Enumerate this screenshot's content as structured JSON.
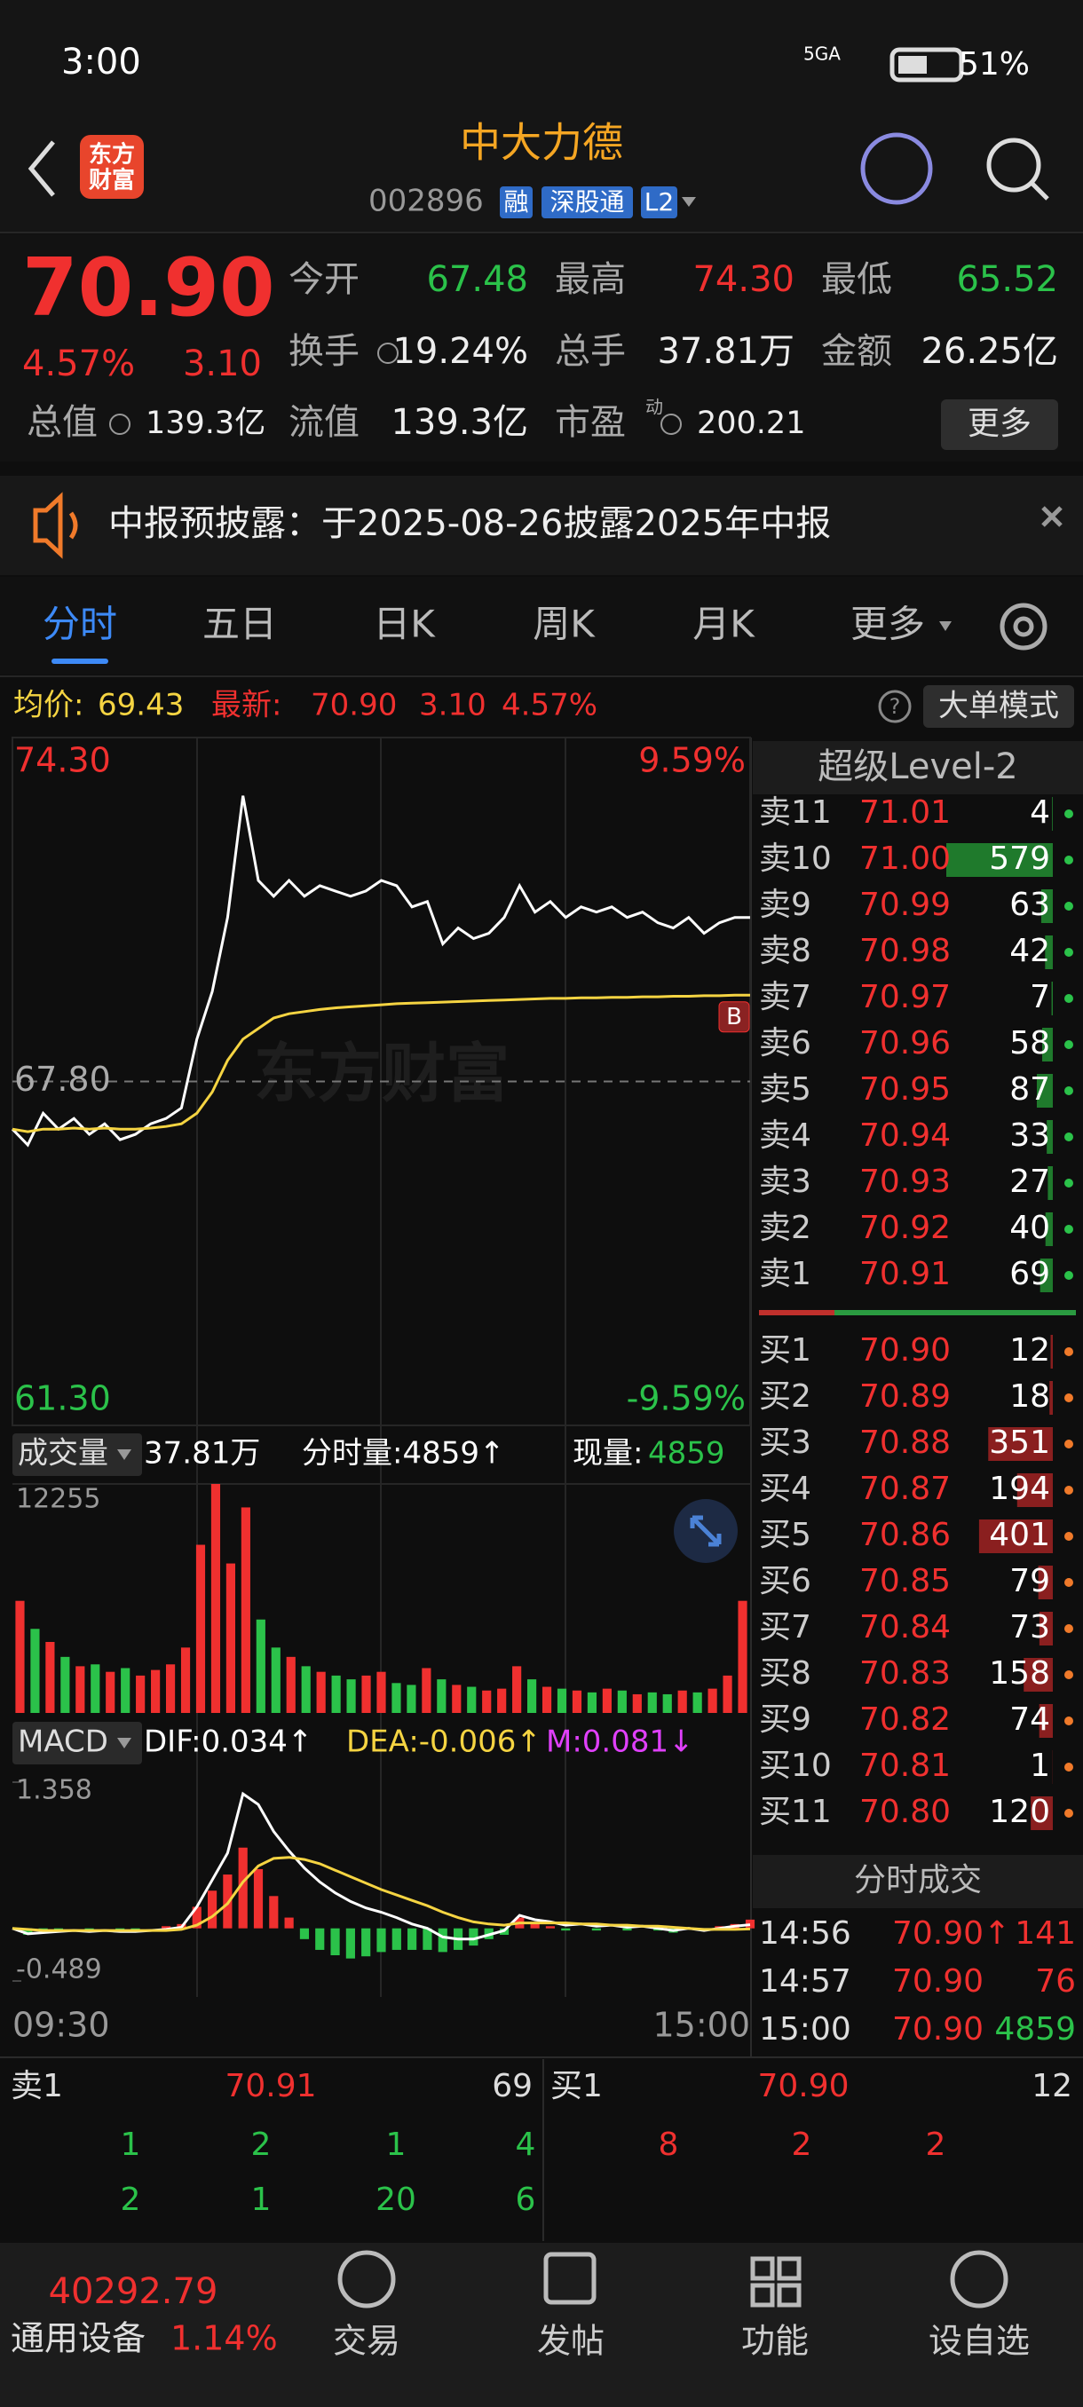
{
  "status_bar": {
    "time": "3:00",
    "network": "5GA",
    "battery": "51%"
  },
  "header": {
    "logo": [
      "东方",
      "财富"
    ],
    "title": "中大力德",
    "code": "002896",
    "badges": [
      "融",
      "深股通",
      "L2"
    ]
  },
  "quote": {
    "price": "70.90",
    "change_pct": "4.57%",
    "change": "3.10",
    "stats": [
      {
        "label": "今开",
        "value": "67.48"
      },
      {
        "label": "最高",
        "value": "74.30"
      },
      {
        "label": "最低",
        "value": "65.52"
      },
      {
        "label": "换手",
        "value": "19.24%"
      },
      {
        "label": "总手",
        "value": "37.81万"
      },
      {
        "label": "金额",
        "value": "26.25亿"
      },
      {
        "label": "总值",
        "value": "139.3亿"
      },
      {
        "label": "流值",
        "value": "139.3亿"
      },
      {
        "label": "市盈",
        "value": "200.21"
      }
    ],
    "pe_superscript": "动",
    "more": "更多"
  },
  "notice": "中报预披露：于2025-08-26披露2025年中报",
  "tabs": [
    "分时",
    "五日",
    "日K",
    "周K",
    "月K",
    "更多"
  ],
  "info_bar": {
    "avg_label": "均价:",
    "avg": "69.43",
    "last_label": "最新:",
    "last": "70.90",
    "change": "3.10",
    "change_pct": "4.57%",
    "help": "?",
    "big_order_mode": "大单模式"
  },
  "chart_data": [
    {
      "type": "line",
      "ylim": [
        61.3,
        74.3
      ],
      "yticks": [
        {
          "value": 74.3,
          "label": "74.30"
        },
        {
          "value": 67.8,
          "label": "67.80"
        },
        {
          "value": 61.3,
          "label": "61.30"
        }
      ],
      "right_labels": [
        "9.59%",
        "-9.59%"
      ],
      "grid": true,
      "watermark": "东方财富",
      "marker": "B",
      "series": [
        {
          "color": "#ffffff",
          "values": [
            66.9,
            66.6,
            67.2,
            66.9,
            67.1,
            66.8,
            67.0,
            66.7,
            66.8,
            67.0,
            67.1,
            67.3,
            68.6,
            69.5,
            70.9,
            73.2,
            71.6,
            71.3,
            71.6,
            71.3,
            71.5,
            71.4,
            71.3,
            71.4,
            71.6,
            71.5,
            71.1,
            71.2,
            70.4,
            70.7,
            70.5,
            70.6,
            70.9,
            71.5,
            71.0,
            71.2,
            70.9,
            71.1,
            71.0,
            71.1,
            70.9,
            71.0,
            70.8,
            70.7,
            70.9,
            70.6,
            70.8,
            70.9,
            70.9
          ]
        },
        {
          "color": "#f5d442",
          "values": [
            66.9,
            66.85,
            66.9,
            66.9,
            66.92,
            66.9,
            66.92,
            66.9,
            66.9,
            66.92,
            66.95,
            67.0,
            67.2,
            67.6,
            68.2,
            68.6,
            68.8,
            69.0,
            69.08,
            69.12,
            69.16,
            69.19,
            69.21,
            69.23,
            69.25,
            69.27,
            69.28,
            69.29,
            69.3,
            69.31,
            69.32,
            69.33,
            69.34,
            69.35,
            69.36,
            69.37,
            69.37,
            69.38,
            69.38,
            69.39,
            69.39,
            69.4,
            69.4,
            69.41,
            69.41,
            69.42,
            69.42,
            69.43,
            69.43
          ]
        }
      ]
    },
    {
      "type": "bar",
      "label": "成交量",
      "total": "37.81万",
      "period_volume": "分时量:4859↑",
      "current_label": "现量:",
      "current": "4859",
      "ylim": [
        0,
        12255
      ],
      "yticks": [
        12255
      ],
      "up_color": "#f0302f",
      "down_color": "#2bc24a",
      "values": [
        6000,
        4500,
        3800,
        3000,
        2500,
        2600,
        2200,
        2400,
        2000,
        2300,
        2600,
        3500,
        9000,
        12255,
        8000,
        11000,
        5000,
        3500,
        3000,
        2500,
        2200,
        2000,
        1800,
        2000,
        2200,
        1600,
        1500,
        2400,
        1800,
        1500,
        1400,
        1200,
        1300,
        2500,
        1800,
        1400,
        1300,
        1200,
        1100,
        1300,
        1200,
        1000,
        1100,
        1000,
        1200,
        1100,
        1300,
        2000,
        6000
      ]
    },
    {
      "type": "macd",
      "label": "MACD",
      "legend": [
        "DIF:0.034↑",
        "DEA:-0.006↑",
        "M:0.081↓"
      ],
      "ylim": [
        -0.489,
        1.358
      ],
      "yticks": [
        1.358,
        -0.489
      ],
      "up_color": "#f0302f",
      "down_color": "#2bc24a",
      "series": [
        {
          "color": "#ffffff",
          "values": [
            0.0,
            -0.05,
            -0.04,
            -0.03,
            -0.02,
            -0.03,
            -0.02,
            -0.03,
            -0.03,
            -0.02,
            -0.01,
            0.01,
            0.2,
            0.45,
            0.7,
            1.25,
            1.15,
            0.9,
            0.72,
            0.56,
            0.43,
            0.33,
            0.25,
            0.19,
            0.15,
            0.1,
            0.04,
            0.0,
            -0.08,
            -0.1,
            -0.1,
            -0.06,
            -0.02,
            0.12,
            0.08,
            0.06,
            0.03,
            0.04,
            0.02,
            0.03,
            0.01,
            0.02,
            0.0,
            -0.02,
            0.0,
            -0.02,
            0.0,
            0.02,
            0.034
          ]
        },
        {
          "color": "#f5d442",
          "values": [
            0.0,
            -0.01,
            -0.02,
            -0.02,
            -0.02,
            -0.02,
            -0.02,
            -0.02,
            -0.02,
            -0.02,
            -0.02,
            -0.01,
            0.03,
            0.11,
            0.23,
            0.43,
            0.58,
            0.65,
            0.66,
            0.64,
            0.6,
            0.54,
            0.48,
            0.42,
            0.36,
            0.31,
            0.26,
            0.21,
            0.15,
            0.1,
            0.06,
            0.04,
            0.03,
            0.05,
            0.05,
            0.05,
            0.05,
            0.04,
            0.04,
            0.03,
            0.03,
            0.02,
            0.02,
            0.01,
            0.0,
            -0.01,
            -0.01,
            -0.01,
            -0.006
          ]
        }
      ],
      "histogram": [
        0,
        -0.06,
        -0.04,
        -0.02,
        0,
        -0.02,
        0,
        -0.02,
        -0.02,
        0,
        0.02,
        0.04,
        0.2,
        0.35,
        0.5,
        0.75,
        0.55,
        0.3,
        0.1,
        -0.1,
        -0.2,
        -0.25,
        -0.28,
        -0.26,
        -0.22,
        -0.2,
        -0.2,
        -0.2,
        -0.22,
        -0.2,
        -0.16,
        -0.1,
        -0.06,
        0.1,
        0.06,
        0.02,
        -0.02,
        0,
        -0.02,
        0,
        -0.02,
        0,
        -0.02,
        -0.04,
        0,
        -0.02,
        0.02,
        0.04,
        0.081
      ]
    }
  ],
  "time_axis": [
    "09:30",
    "15:00"
  ],
  "order_book": {
    "title": "超级Level-2",
    "asks": [
      {
        "label": "卖11",
        "price": "71.01",
        "qty": 4
      },
      {
        "label": "卖10",
        "price": "71.00",
        "qty": 579
      },
      {
        "label": "卖9",
        "price": "70.99",
        "qty": 63
      },
      {
        "label": "卖8",
        "price": "70.98",
        "qty": 42
      },
      {
        "label": "卖7",
        "price": "70.97",
        "qty": 7
      },
      {
        "label": "卖6",
        "price": "70.96",
        "qty": 58
      },
      {
        "label": "卖5",
        "price": "70.95",
        "qty": 87
      },
      {
        "label": "卖4",
        "price": "70.94",
        "qty": 33
      },
      {
        "label": "卖3",
        "price": "70.93",
        "qty": 27
      },
      {
        "label": "卖2",
        "price": "70.92",
        "qty": 40
      },
      {
        "label": "卖1",
        "price": "70.91",
        "qty": 69
      }
    ],
    "bids": [
      {
        "label": "买1",
        "price": "70.90",
        "qty": 12
      },
      {
        "label": "买2",
        "price": "70.89",
        "qty": 18
      },
      {
        "label": "买3",
        "price": "70.88",
        "qty": 351
      },
      {
        "label": "买4",
        "price": "70.87",
        "qty": 194
      },
      {
        "label": "买5",
        "price": "70.86",
        "qty": 401
      },
      {
        "label": "买6",
        "price": "70.85",
        "qty": 79
      },
      {
        "label": "买7",
        "price": "70.84",
        "qty": 73
      },
      {
        "label": "买8",
        "price": "70.83",
        "qty": 158
      },
      {
        "label": "买9",
        "price": "70.82",
        "qty": 74
      },
      {
        "label": "买10",
        "price": "70.81",
        "qty": 1
      },
      {
        "label": "买11",
        "price": "70.80",
        "qty": 120
      }
    ]
  },
  "trades": {
    "title": "分时成交",
    "rows": [
      [
        "14:56",
        "70.90↑",
        "141"
      ],
      [
        "14:57",
        "70.90",
        "76"
      ],
      [
        "15:00",
        "70.90",
        "4859"
      ]
    ]
  },
  "bottom_book": {
    "ask_label": "卖1",
    "ask_price": "70.91",
    "ask_qty": "69",
    "bid_label": "买1",
    "bid_price": "70.90",
    "bid_qty": "12",
    "ask_rows": [
      [
        "1",
        "2",
        "1",
        "4"
      ],
      [
        "2",
        "1",
        "20",
        "6"
      ]
    ],
    "bid_rows": [
      [
        "8",
        "2",
        "2"
      ]
    ]
  },
  "nav": {
    "index_value": "40292.79",
    "sector": "通用设备",
    "sector_change": "1.14%",
    "items": [
      "交易",
      "发帖",
      "功能",
      "设自选"
    ]
  }
}
